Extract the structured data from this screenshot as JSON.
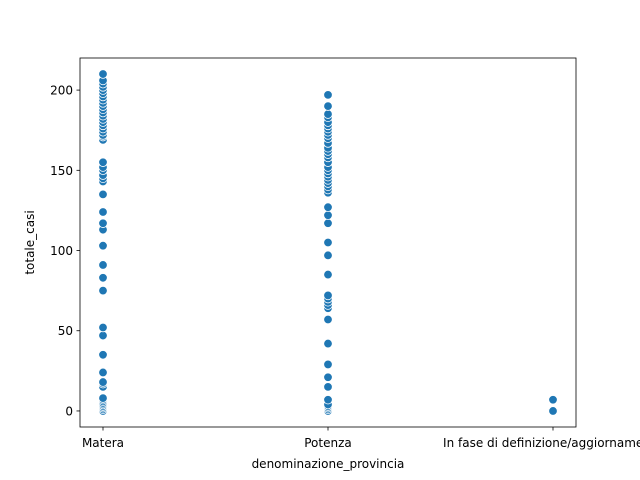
{
  "chart_data": {
    "type": "scatter",
    "xlabel": "denominazione_provincia",
    "ylabel": "totale_casi",
    "categories": [
      "Matera",
      "Potenza",
      "In fase di definizione/aggiornamento"
    ],
    "ylim": [
      -10,
      220
    ],
    "yticks": [
      0,
      50,
      100,
      150,
      200
    ],
    "grid": false,
    "marker_color": "#1f77b4",
    "series": [
      {
        "values": {
          "Matera": [
            0,
            1,
            2,
            3,
            4,
            5,
            6,
            7,
            8,
            15,
            17,
            18,
            24,
            35,
            47,
            52,
            75,
            83,
            91,
            103,
            113,
            117,
            124,
            135,
            143,
            145,
            147,
            150,
            152,
            155,
            169,
            171,
            172,
            174,
            176,
            178,
            180,
            182,
            184,
            186,
            188,
            190,
            192,
            194,
            196,
            198,
            200,
            202,
            204,
            206,
            210
          ],
          "Potenza": [
            0,
            1,
            2,
            3,
            4,
            7,
            15,
            21,
            29,
            42,
            57,
            64,
            66,
            68,
            70,
            72,
            85,
            97,
            105,
            117,
            122,
            127,
            136,
            138,
            140,
            142,
            144,
            146,
            148,
            150,
            152,
            155,
            158,
            160,
            162,
            164,
            167,
            170,
            172,
            174,
            176,
            178,
            180,
            183,
            185,
            190,
            197
          ],
          "In fase di definizione/aggiornamento": [
            0,
            7
          ]
        }
      }
    ]
  }
}
